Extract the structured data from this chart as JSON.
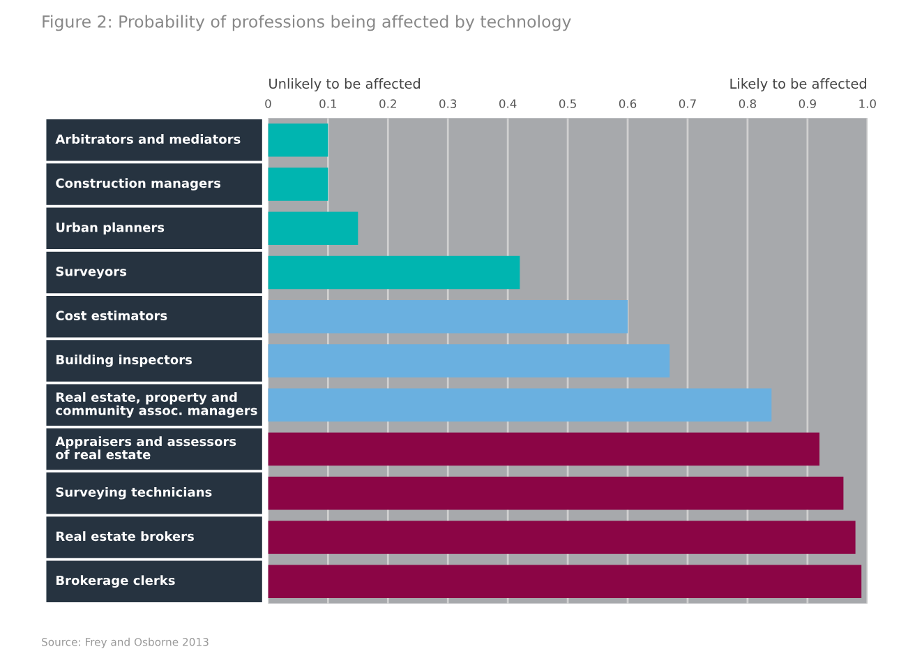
{
  "chart_data": {
    "type": "bar",
    "orientation": "horizontal",
    "title": "Figure 2: Probability of professions being affected by technology",
    "categories": [
      "Arbitrators and mediators",
      "Construction managers",
      "Urban planners",
      "Surveyors",
      "Cost estimators",
      "Building inspectors",
      "Real estate, property and\ncommunity assoc. managers",
      "Appraisers and assessors\nof real estate",
      "Surveying technicians",
      "Real estate brokers",
      "Brokerage clerks"
    ],
    "values": [
      0.1,
      0.1,
      0.15,
      0.42,
      0.6,
      0.67,
      0.84,
      0.92,
      0.96,
      0.98,
      0.99
    ],
    "colors": [
      "#00b5b0",
      "#00b5b0",
      "#00b5b0",
      "#00b5b0",
      "#6ab0e0",
      "#6ab0e0",
      "#6ab0e0",
      "#8b0545",
      "#8b0545",
      "#8b0545",
      "#8b0545"
    ],
    "xlim": [
      0,
      1.0
    ],
    "xticks": [
      0,
      0.1,
      0.2,
      0.3,
      0.4,
      0.5,
      0.6,
      0.7,
      0.8,
      0.9,
      {
        "value": 1.0,
        "label": "1.0"
      }
    ],
    "grid": "x",
    "annotations": [
      "Unlikely to be affected",
      "Likely to be affected",
      "Source: Frey and Osborne 2013"
    ]
  }
}
